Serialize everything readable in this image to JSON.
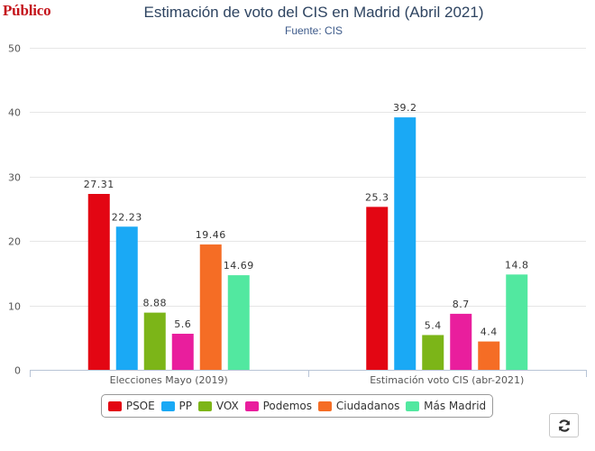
{
  "brand": "Público",
  "refresh_icon": "refresh-icon",
  "colors": {
    "PSOE": "#e30613",
    "PP": "#1aa9f5",
    "VOX": "#7cb518",
    "Podemos": "#e91e9d",
    "Ciudadanos": "#f56d25",
    "Más Madrid": "#52e8a0"
  },
  "chart_data": {
    "type": "bar",
    "title": "Estimación de voto del CIS en Madrid (Abril 2021)",
    "subtitle": "Fuente: CIS",
    "categories": [
      "Elecciones Mayo (2019)",
      "Estimación voto CIS (abr-2021)"
    ],
    "series": [
      {
        "name": "PSOE",
        "values": [
          27.31,
          25.3
        ]
      },
      {
        "name": "PP",
        "values": [
          22.23,
          39.2
        ]
      },
      {
        "name": "VOX",
        "values": [
          8.88,
          5.4
        ]
      },
      {
        "name": "Podemos",
        "values": [
          5.6,
          8.7
        ]
      },
      {
        "name": "Ciudadanos",
        "values": [
          19.46,
          4.4
        ]
      },
      {
        "name": "Más Madrid",
        "values": [
          14.69,
          14.8
        ]
      }
    ],
    "ylim": [
      0,
      50
    ],
    "yticks": [
      0,
      10,
      20,
      30,
      40,
      50
    ],
    "xlabel": "",
    "ylabel": "",
    "grid": true,
    "legend": "bottom-center"
  }
}
